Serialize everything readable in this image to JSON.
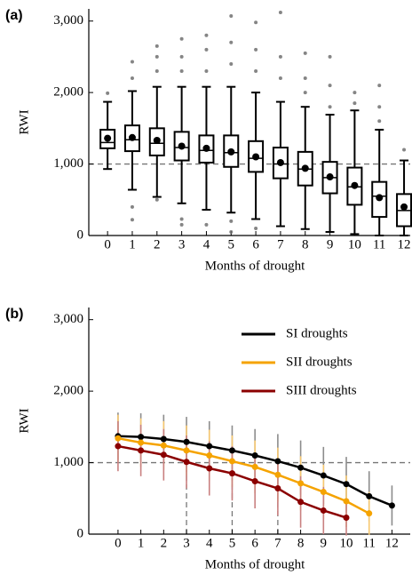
{
  "chart_data": [
    {
      "type": "box",
      "panel_label": "(a)",
      "x_label": "Months of drought",
      "y_label": "RWI",
      "categories": [
        0,
        1,
        2,
        3,
        4,
        5,
        6,
        7,
        8,
        9,
        10,
        11,
        12
      ],
      "xlim": [
        -0.76,
        12.25
      ],
      "ylim": [
        0,
        3170
      ],
      "yticks": [
        0,
        {
          "value": 1000,
          "label": "1,000"
        },
        {
          "value": 2000,
          "label": "2,000"
        },
        {
          "value": 3000,
          "label": "3,000"
        }
      ],
      "reference_y": 1000,
      "boxes": [
        {
          "low": 930,
          "q1": 1220,
          "median": 1300,
          "q3": 1480,
          "high": 1870,
          "mean": 1360,
          "outliers": [
            1990
          ]
        },
        {
          "low": 640,
          "q1": 1180,
          "median": 1340,
          "q3": 1540,
          "high": 2020,
          "mean": 1370,
          "outliers": [
            2200,
            2430,
            220,
            400
          ]
        },
        {
          "low": 540,
          "q1": 1120,
          "median": 1290,
          "q3": 1500,
          "high": 2080,
          "mean": 1330,
          "outliers": [
            2300,
            2500,
            2650,
            500
          ]
        },
        {
          "low": 450,
          "q1": 1050,
          "median": 1230,
          "q3": 1450,
          "high": 2080,
          "mean": 1250,
          "outliers": [
            2300,
            2500,
            2750,
            230,
            150
          ]
        },
        {
          "low": 360,
          "q1": 1020,
          "median": 1190,
          "q3": 1400,
          "high": 2080,
          "mean": 1220,
          "outliers": [
            2300,
            2600,
            2800,
            150
          ]
        },
        {
          "low": 320,
          "q1": 960,
          "median": 1160,
          "q3": 1400,
          "high": 2080,
          "mean": 1170,
          "outliers": [
            2400,
            2700,
            3070,
            200,
            50
          ]
        },
        {
          "low": 230,
          "q1": 890,
          "median": 1080,
          "q3": 1320,
          "high": 2000,
          "mean": 1100,
          "outliers": [
            2300,
            2600,
            2980,
            100
          ]
        },
        {
          "low": 130,
          "q1": 800,
          "median": 1000,
          "q3": 1230,
          "high": 1870,
          "mean": 1020,
          "outliers": [
            2200,
            2500,
            3120
          ]
        },
        {
          "low": 90,
          "q1": 700,
          "median": 930,
          "q3": 1170,
          "high": 1800,
          "mean": 940,
          "outliers": [
            2000,
            2200,
            2550
          ]
        },
        {
          "low": 50,
          "q1": 590,
          "median": 810,
          "q3": 1030,
          "high": 1690,
          "mean": 820,
          "outliers": [
            1800,
            2100,
            2500
          ]
        },
        {
          "low": 20,
          "q1": 430,
          "median": 680,
          "q3": 950,
          "high": 1750,
          "mean": 700,
          "outliers": [
            1850,
            2000
          ]
        },
        {
          "low": 0,
          "q1": 260,
          "median": 550,
          "q3": 750,
          "high": 1480,
          "mean": 530,
          "outliers": [
            1600,
            1800,
            2100
          ]
        },
        {
          "low": 0,
          "q1": 130,
          "median": 350,
          "q3": 580,
          "high": 1050,
          "mean": 400,
          "outliers": [
            1200
          ]
        }
      ]
    },
    {
      "type": "line",
      "panel_label": "(b)",
      "x_label": "Months of drought",
      "y_label": "RWI",
      "x": [
        0,
        1,
        2,
        3,
        4,
        5,
        6,
        7,
        8,
        9,
        10,
        11,
        12
      ],
      "xlim": [
        -1.28,
        12.8
      ],
      "ylim": [
        0,
        3170
      ],
      "yticks": [
        0,
        {
          "value": 1000,
          "label": "1,000"
        },
        {
          "value": 2000,
          "label": "2,000"
        },
        {
          "value": 3000,
          "label": "3,000"
        }
      ],
      "reference_y": 1000,
      "reference_x": [
        3,
        5,
        7
      ],
      "legend": "upper right",
      "series": [
        {
          "name": "SI droughts",
          "color": "#000000",
          "error_color": "#8c8c8c",
          "values": [
            1370,
            1360,
            1330,
            1290,
            1230,
            1170,
            1100,
            1020,
            930,
            820,
            700,
            530,
            400
          ],
          "errors": [
            330,
            330,
            340,
            350,
            350,
            350,
            370,
            380,
            380,
            400,
            380,
            350,
            280
          ]
        },
        {
          "name": "SII droughts",
          "color": "#f5a300",
          "error_color": "#f7c870",
          "values": [
            1340,
            1280,
            1240,
            1170,
            1100,
            1020,
            940,
            830,
            710,
            590,
            460,
            290,
            null
          ],
          "errors": [
            330,
            340,
            340,
            350,
            360,
            360,
            370,
            380,
            380,
            380,
            360,
            300,
            null
          ]
        },
        {
          "name": "SIII droughts",
          "color": "#8b0000",
          "error_color": "#c98080",
          "values": [
            1230,
            1170,
            1110,
            1010,
            920,
            850,
            740,
            640,
            450,
            330,
            230,
            null,
            null
          ],
          "errors": [
            350,
            360,
            360,
            370,
            380,
            380,
            380,
            380,
            360,
            330,
            250,
            null,
            null
          ]
        }
      ]
    }
  ]
}
